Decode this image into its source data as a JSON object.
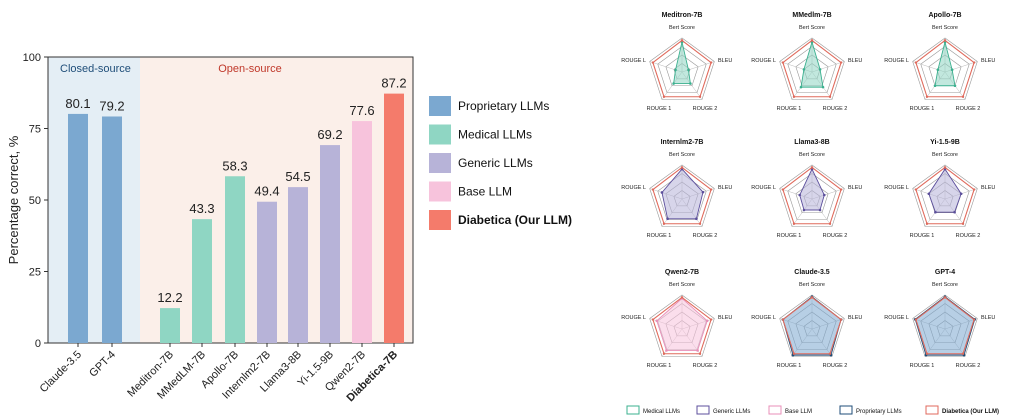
{
  "chart_data": [
    {
      "type": "bar",
      "ylabel": "Percentage correct, %",
      "ylim": [
        0,
        100
      ],
      "yticks": [
        "0",
        "25",
        "50",
        "75",
        "100"
      ],
      "regions": [
        {
          "label": "Closed-source",
          "color": "#1f4e79",
          "bg": "#e4eef5"
        },
        {
          "label": "Open-source",
          "color": "#c0392b",
          "bg": "#fbefe9"
        }
      ],
      "categories": [
        "Claude-3.5",
        "GPT-4",
        "Meditron-7B",
        "MMedLM-7B",
        "Apollo-7B",
        "Internlm2-7B",
        "Llama3-8B",
        "Yi-1.5-9B",
        "Qwen2-7B",
        "Diabetica-7B"
      ],
      "values": [
        80.1,
        79.2,
        12.2,
        43.3,
        58.3,
        49.4,
        54.5,
        69.2,
        77.6,
        87.2
      ],
      "value_labels": [
        "80.1",
        "79.2",
        "12.2",
        "43.3",
        "58.3",
        "49.4",
        "54.5",
        "69.2",
        "77.6",
        "87.2"
      ],
      "groups": [
        "prop",
        "prop",
        "med",
        "med",
        "med",
        "gen",
        "gen",
        "gen",
        "base",
        "ours"
      ],
      "legend": [
        {
          "key": "prop",
          "label": "Proprietary LLMs",
          "color": "#7ba8d0"
        },
        {
          "key": "med",
          "label": "Medical LLMs",
          "color": "#8fd6c3"
        },
        {
          "key": "gen",
          "label": "Generic LLMs",
          "color": "#b7b3d8"
        },
        {
          "key": "base",
          "label": "Base LLM",
          "color": "#f7c3dc"
        },
        {
          "key": "ours",
          "label": "Diabetica (Our LLM)",
          "color": "#f47b6b"
        }
      ]
    },
    {
      "type": "radar",
      "axes": [
        "Bert Score",
        "BLEU",
        "ROUGE 2",
        "ROUGE 1",
        "ROUGE L"
      ],
      "axis_label_text": [
        "Bert Score",
        "BLEU",
        "ROUGE 2",
        "ROUGE 1",
        "ROUGE L"
      ],
      "scale_max": 1,
      "reference_name": "Diabetica (Our LLM)",
      "reference_values": [
        0.93,
        0.9,
        0.9,
        0.9,
        0.9
      ],
      "reference_color": "#e06a5c",
      "panels": [
        {
          "title": "Meditron-7B",
          "group": "med",
          "values": [
            0.88,
            0.2,
            0.42,
            0.42,
            0.2
          ]
        },
        {
          "title": "MMedlm-7B",
          "group": "med",
          "values": [
            0.88,
            0.25,
            0.55,
            0.55,
            0.25
          ]
        },
        {
          "title": "Apollo-7B",
          "group": "med",
          "values": [
            0.88,
            0.22,
            0.5,
            0.5,
            0.22
          ]
        },
        {
          "title": "Internlm2-7B",
          "group": "gen",
          "values": [
            0.88,
            0.65,
            0.72,
            0.72,
            0.62
          ]
        },
        {
          "title": "Llama3-8B",
          "group": "gen",
          "values": [
            0.88,
            0.38,
            0.4,
            0.4,
            0.38
          ]
        },
        {
          "title": "Yi-1.5-9B",
          "group": "gen",
          "values": [
            0.88,
            0.5,
            0.48,
            0.48,
            0.5
          ]
        },
        {
          "title": "Qwen2-7B",
          "group": "base",
          "values": [
            0.9,
            0.78,
            0.78,
            0.78,
            0.78
          ]
        },
        {
          "title": "Claude-3.5",
          "group": "prop",
          "values": [
            0.95,
            0.9,
            0.95,
            0.95,
            0.9
          ]
        },
        {
          "title": "GPT-4",
          "group": "prop",
          "values": [
            0.95,
            0.92,
            0.95,
            0.95,
            0.92
          ]
        }
      ],
      "group_styles": {
        "med": {
          "stroke": "#3bb08f",
          "fill": "#8fd6c3"
        },
        "gen": {
          "stroke": "#5c4f9c",
          "fill": "#b7b3d8"
        },
        "base": {
          "stroke": "#e88fb8",
          "fill": "#f7c3dc"
        },
        "prop": {
          "stroke": "#1f4e79",
          "fill": "#7ba8d0"
        }
      },
      "legend": [
        {
          "label": "Medical LLMs",
          "color": "#3bb08f"
        },
        {
          "label": "Generic LLMs",
          "color": "#5c4f9c"
        },
        {
          "label": "Base LLM",
          "color": "#e88fb8"
        },
        {
          "label": "Proprietary LLMs",
          "color": "#1f4e79"
        },
        {
          "label": "Diabetica (Our LLM)",
          "color": "#e06a5c",
          "bold": true
        }
      ]
    }
  ]
}
